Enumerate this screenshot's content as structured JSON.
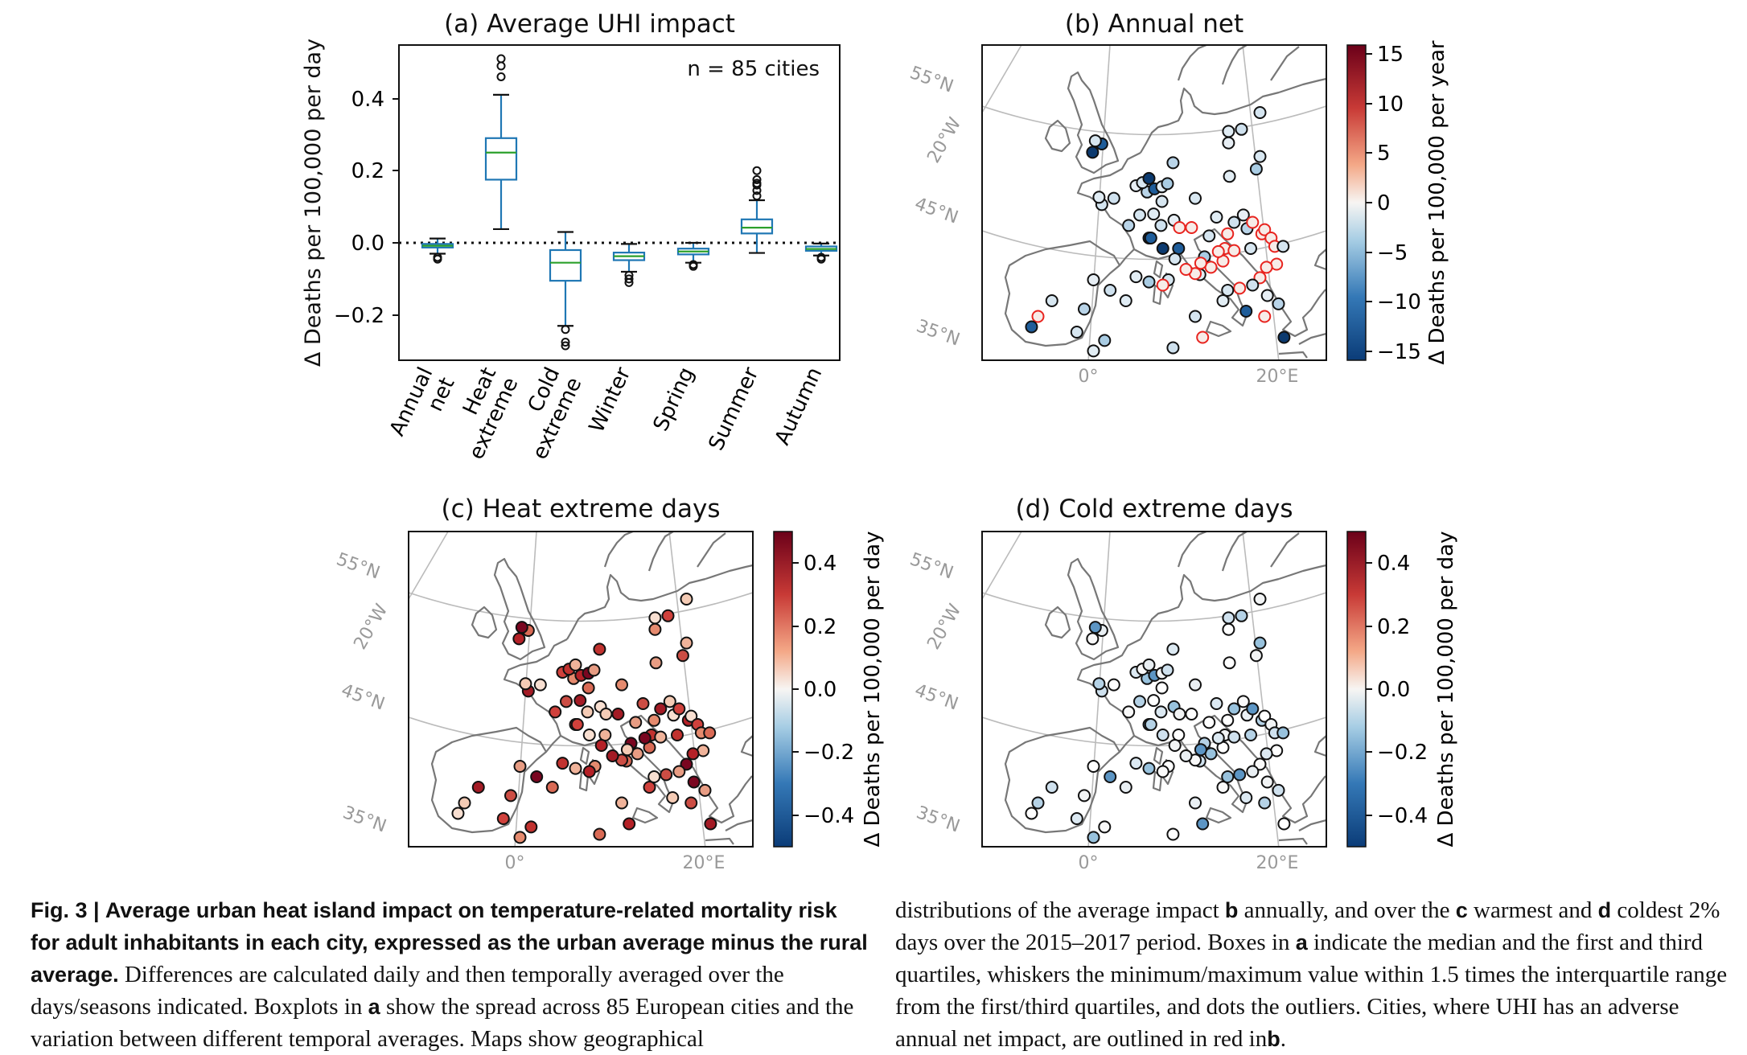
{
  "panels": {
    "a": {
      "title": "(a) Average UHI impact",
      "note": "n = 85 cities",
      "ylabel": "Δ Deaths per 100,000 per day",
      "yticks": [
        "0.4",
        "0.2",
        "0.0",
        "−0.2"
      ],
      "categories": [
        [
          "Annual",
          "net"
        ],
        [
          "Heat",
          "extreme"
        ],
        [
          "Cold",
          "extreme"
        ],
        [
          "Winter"
        ],
        [
          "Spring"
        ],
        [
          "Summer"
        ],
        [
          "Autumn"
        ]
      ]
    },
    "b": {
      "title": "(b) Annual net",
      "colorbar_label": "Δ Deaths per 100,000 per year",
      "colorbar_ticks": [
        "15",
        "10",
        "5",
        "0",
        "−5",
        "−10",
        "−15"
      ]
    },
    "c": {
      "title": "(c) Heat extreme days",
      "colorbar_label": "Δ Deaths per 100,000 per day",
      "colorbar_ticks": [
        "0.4",
        "0.2",
        "0.0",
        "−0.2",
        "−0.4"
      ]
    },
    "d": {
      "title": "(d) Cold extreme days",
      "colorbar_label": "Δ Deaths per 100,000 per day",
      "colorbar_ticks": [
        "0.4",
        "0.2",
        "0.0",
        "−0.2",
        "−0.4"
      ]
    },
    "map_labels": {
      "lat55": "55°N",
      "lat45": "45°N",
      "lat35": "35°N",
      "lon20w": "20°W",
      "lon0": "0°",
      "lon20e": "20°E"
    }
  },
  "chart_data": {
    "type": "box",
    "title": "(a) Average UHI impact",
    "ylabel": "Δ Deaths per 100,000 per day",
    "ylim": [
      -0.32,
      0.54
    ],
    "reference_line": 0.0,
    "n_label": "n = 85 cities",
    "categories": [
      "Annual net",
      "Heat extreme",
      "Cold extreme",
      "Winter",
      "Spring",
      "Summer",
      "Autumn"
    ],
    "boxes": [
      {
        "whisker_low": -0.03,
        "q1": -0.013,
        "median": -0.008,
        "q3": -0.003,
        "whisker_high": 0.012,
        "outliers": [
          -0.04,
          -0.045
        ]
      },
      {
        "whisker_low": 0.038,
        "q1": 0.175,
        "median": 0.25,
        "q3": 0.29,
        "whisker_high": 0.41,
        "outliers": [
          0.46,
          0.49,
          0.51
        ]
      },
      {
        "whisker_low": -0.23,
        "q1": -0.105,
        "median": -0.055,
        "q3": -0.02,
        "whisker_high": 0.03,
        "outliers": [
          -0.24,
          -0.275,
          -0.285
        ]
      },
      {
        "whisker_low": -0.08,
        "q1": -0.048,
        "median": -0.037,
        "q3": -0.027,
        "whisker_high": -0.003,
        "outliers": [
          -0.09,
          -0.1,
          -0.11
        ]
      },
      {
        "whisker_low": -0.055,
        "q1": -0.032,
        "median": -0.024,
        "q3": -0.016,
        "whisker_high": 0.0,
        "outliers": [
          -0.06,
          -0.065
        ]
      },
      {
        "whisker_low": -0.028,
        "q1": 0.026,
        "median": 0.042,
        "q3": 0.065,
        "whisker_high": 0.118,
        "outliers": [
          0.13,
          0.145,
          0.16,
          0.165,
          0.175,
          0.2
        ]
      },
      {
        "whisker_low": -0.035,
        "q1": -0.022,
        "median": -0.017,
        "q3": -0.01,
        "whisker_high": -0.002,
        "outliers": [
          -0.04,
          -0.045
        ]
      }
    ]
  },
  "caption": {
    "fig_label": "Fig. 3 |",
    "bold_title": "Average urban heat island impact on temperature-related mortality risk for adult inhabitants in each city, expressed as the urban average minus the rural average.",
    "left_rest": "Differences are calculated daily and then temporally averaged over the days/seasons indicated. Boxplots in",
    "a1": "a",
    "left_rest2": "show the spread across 85 European cities and the variation between different temporal averages. Maps show geographical",
    "right_1": "distributions of the average impact",
    "b1": "b",
    "right_2": "annually, and over the",
    "c1": "c",
    "right_3": "warmest and",
    "d1": "d",
    "right_4": "coldest 2% days over the 2015–2017 period. Boxes in",
    "a2": "a",
    "right_5": "indicate the median and the first and third quartiles, whiskers the minimum/maximum value within 1.5 times the interquartile range from the first/third quartiles, and dots the outliers. Cities, where UHI has an adverse annual net impact, are outlined in red in",
    "b2": "b",
    "right_6": "."
  }
}
